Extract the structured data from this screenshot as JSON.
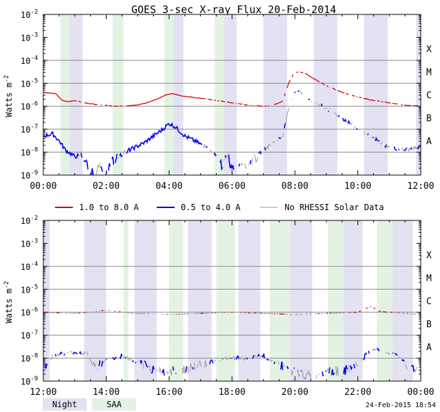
{
  "title": "GOES 3-sec X-ray Flux   20-Feb-2014",
  "ylabel": "Watts m",
  "ylabel_exp": "-2",
  "timestamp": "24-Feb-2015 18:54",
  "y_ticks": [
    {
      "exp": -2,
      "label": "10",
      "sup": "-2"
    },
    {
      "exp": -3,
      "label": "10",
      "sup": "-3"
    },
    {
      "exp": -4,
      "label": "10",
      "sup": "-4"
    },
    {
      "exp": -5,
      "label": "10",
      "sup": "-5"
    },
    {
      "exp": -6,
      "label": "10",
      "sup": "-6"
    },
    {
      "exp": -7,
      "label": "10",
      "sup": "-7"
    },
    {
      "exp": -8,
      "label": "10",
      "sup": "-8"
    },
    {
      "exp": -9,
      "label": "10",
      "sup": "-9"
    }
  ],
  "flare_classes": [
    {
      "label": "X",
      "exp": -4
    },
    {
      "label": "M",
      "exp": -5
    },
    {
      "label": "C",
      "exp": -6
    },
    {
      "label": "B",
      "exp": -7
    },
    {
      "label": "A",
      "exp": -8
    }
  ],
  "legend": [
    {
      "label": "1.0 to 8.0 A",
      "color": "#dd0000"
    },
    {
      "label": "0.5 to 4.0 A",
      "color": "#0000ee"
    },
    {
      "label": "No RHESSI Solar Data",
      "color": "#999999"
    }
  ],
  "bottom_legend": [
    {
      "label": "Night",
      "color": "#e2e2f2"
    },
    {
      "label": "SAA",
      "color": "#e4f2e4"
    }
  ],
  "colors": {
    "night": "#e2e2f2",
    "saa": "#e4f2e4",
    "long": "#dd0000",
    "short": "#0000ee",
    "norhessi": "#999999"
  },
  "chart_data": [
    {
      "type": "line",
      "panel": "top",
      "x_range_hours": [
        0,
        12
      ],
      "ylim_log10": [
        -9,
        -2
      ],
      "x_ticks": [
        "00:00",
        "02:00",
        "04:00",
        "06:00",
        "08:00",
        "10:00",
        "12:00"
      ],
      "night": [
        [
          0.55,
          1.25
        ],
        [
          3.85,
          4.45
        ],
        [
          5.65,
          6.15
        ],
        [
          7.0,
          7.75
        ],
        [
          8.6,
          9.35
        ],
        [
          10.2,
          10.95
        ],
        [
          11.85,
          12.0
        ]
      ],
      "saa": [
        [
          0.55,
          0.85
        ],
        [
          2.2,
          2.55
        ],
        [
          3.85,
          4.15
        ],
        [
          5.45,
          5.75
        ]
      ],
      "series": [
        {
          "name": "1.0 to 8.0 A",
          "points": [
            [
              0,
              -5.4
            ],
            [
              0.4,
              -5.45
            ],
            [
              0.6,
              -5.75
            ],
            [
              0.8,
              -5.8
            ],
            [
              1.0,
              -5.75
            ],
            [
              1.3,
              -5.85
            ],
            [
              1.8,
              -5.95
            ],
            [
              2.5,
              -6.0
            ],
            [
              3.0,
              -5.95
            ],
            [
              3.3,
              -5.85
            ],
            [
              3.6,
              -5.7
            ],
            [
              3.9,
              -5.5
            ],
            [
              4.1,
              -5.45
            ],
            [
              4.4,
              -5.55
            ],
            [
              5.0,
              -5.65
            ],
            [
              5.5,
              -5.75
            ],
            [
              6.0,
              -5.85
            ],
            [
              6.5,
              -5.95
            ],
            [
              7.0,
              -6.0
            ],
            [
              7.3,
              -5.95
            ],
            [
              7.6,
              -5.8
            ],
            [
              7.8,
              -5.0
            ],
            [
              7.95,
              -4.6
            ],
            [
              8.1,
              -4.5
            ],
            [
              8.3,
              -4.55
            ],
            [
              8.6,
              -4.8
            ],
            [
              9.0,
              -5.1
            ],
            [
              9.5,
              -5.4
            ],
            [
              10.0,
              -5.6
            ],
            [
              10.5,
              -5.75
            ],
            [
              11.0,
              -5.85
            ],
            [
              11.5,
              -5.95
            ],
            [
              12.0,
              -6.0
            ]
          ]
        },
        {
          "name": "0.5 to 4.0 A",
          "points": [
            [
              0,
              -7.3
            ],
            [
              0.3,
              -7.2
            ],
            [
              0.5,
              -7.5
            ],
            [
              0.7,
              -7.9
            ],
            [
              1.0,
              -8.2
            ],
            [
              1.2,
              -8.1
            ],
            [
              1.4,
              -8.6
            ],
            [
              1.6,
              -8.9
            ],
            [
              1.8,
              -8.7
            ],
            [
              2.0,
              -8.8
            ],
            [
              2.2,
              -8.4
            ],
            [
              2.4,
              -8.2
            ],
            [
              2.6,
              -8.0
            ],
            [
              2.9,
              -7.8
            ],
            [
              3.2,
              -7.6
            ],
            [
              3.5,
              -7.3
            ],
            [
              3.8,
              -7.0
            ],
            [
              4.0,
              -6.75
            ],
            [
              4.2,
              -6.9
            ],
            [
              4.5,
              -7.3
            ],
            [
              4.8,
              -7.5
            ],
            [
              5.2,
              -7.8
            ],
            [
              5.5,
              -8.2
            ],
            [
              5.7,
              -8.6
            ],
            [
              5.85,
              -8.0
            ],
            [
              5.95,
              -8.8
            ],
            [
              6.2,
              -8.4
            ],
            [
              6.5,
              -8.5
            ],
            [
              6.8,
              -8.2
            ],
            [
              7.0,
              -7.9
            ],
            [
              7.3,
              -7.6
            ],
            [
              7.6,
              -7.3
            ],
            [
              7.8,
              -6.2
            ],
            [
              7.95,
              -5.4
            ],
            [
              8.1,
              -5.3
            ],
            [
              8.3,
              -5.55
            ],
            [
              8.6,
              -5.8
            ],
            [
              9.0,
              -6.1
            ],
            [
              9.5,
              -6.5
            ],
            [
              10.0,
              -7.0
            ],
            [
              10.5,
              -7.4
            ],
            [
              11.0,
              -7.8
            ],
            [
              11.5,
              -7.9
            ],
            [
              12.0,
              -7.8
            ]
          ]
        }
      ],
      "no_rhessi": [
        [
          1.05,
          2.7
        ],
        [
          5.0,
          7.7
        ],
        [
          7.7,
          12.0
        ]
      ]
    },
    {
      "type": "line",
      "panel": "bottom",
      "x_range_hours": [
        12,
        24
      ],
      "ylim_log10": [
        -9,
        -2
      ],
      "x_ticks": [
        "12:00",
        "14:00",
        "16:00",
        "18:00",
        "20:00",
        "22:00",
        "00:00"
      ],
      "night": [
        [
          12.0,
          12.2
        ],
        [
          13.3,
          14.0
        ],
        [
          14.9,
          15.6
        ],
        [
          16.6,
          17.35
        ],
        [
          18.2,
          18.9
        ],
        [
          19.85,
          20.55
        ],
        [
          21.45,
          22.15
        ],
        [
          23.1,
          23.75
        ]
      ],
      "saa": [
        [
          14.55,
          14.7
        ],
        [
          16.0,
          16.45
        ],
        [
          17.5,
          18.1
        ],
        [
          19.2,
          19.85
        ],
        [
          21.05,
          21.55
        ],
        [
          22.6,
          23.1
        ]
      ],
      "series": [
        {
          "name": "1.0 to 8.0 A",
          "points": [
            [
              12,
              -6.0
            ],
            [
              13,
              -6.05
            ],
            [
              13.5,
              -6.0
            ],
            [
              14,
              -5.9
            ],
            [
              14.5,
              -6.0
            ],
            [
              15,
              -6.05
            ],
            [
              16,
              -6.1
            ],
            [
              17,
              -6.05
            ],
            [
              18,
              -6.0
            ],
            [
              19,
              -6.05
            ],
            [
              20,
              -6.1
            ],
            [
              21,
              -6.05
            ],
            [
              22,
              -6.0
            ],
            [
              22.4,
              -5.75
            ],
            [
              22.7,
              -5.95
            ],
            [
              23,
              -6.0
            ],
            [
              24,
              -6.1
            ]
          ]
        },
        {
          "name": "0.5 to 4.0 A",
          "points": [
            [
              12,
              -8.4
            ],
            [
              12.3,
              -7.9
            ],
            [
              12.6,
              -7.8
            ],
            [
              13.0,
              -7.75
            ],
            [
              13.4,
              -7.8
            ],
            [
              13.6,
              -8.4
            ],
            [
              14,
              -8.1
            ],
            [
              14.5,
              -7.9
            ],
            [
              15.0,
              -8.2
            ],
            [
              15.5,
              -8.5
            ],
            [
              16.0,
              -8.6
            ],
            [
              16.5,
              -8.5
            ],
            [
              17.0,
              -8.3
            ],
            [
              17.5,
              -8.1
            ],
            [
              18.0,
              -8.0
            ],
            [
              18.5,
              -8.0
            ],
            [
              19.0,
              -7.9
            ],
            [
              19.5,
              -8.3
            ],
            [
              20.0,
              -8.6
            ],
            [
              20.5,
              -8.8
            ],
            [
              21.0,
              -8.5
            ],
            [
              21.5,
              -8.6
            ],
            [
              22.0,
              -8.3
            ],
            [
              22.3,
              -7.8
            ],
            [
              22.5,
              -7.6
            ],
            [
              22.8,
              -7.7
            ],
            [
              23.2,
              -7.8
            ],
            [
              23.6,
              -8.3
            ],
            [
              24,
              -8.6
            ]
          ]
        }
      ],
      "no_rhessi": [
        [
          12.0,
          24.0
        ]
      ]
    }
  ]
}
